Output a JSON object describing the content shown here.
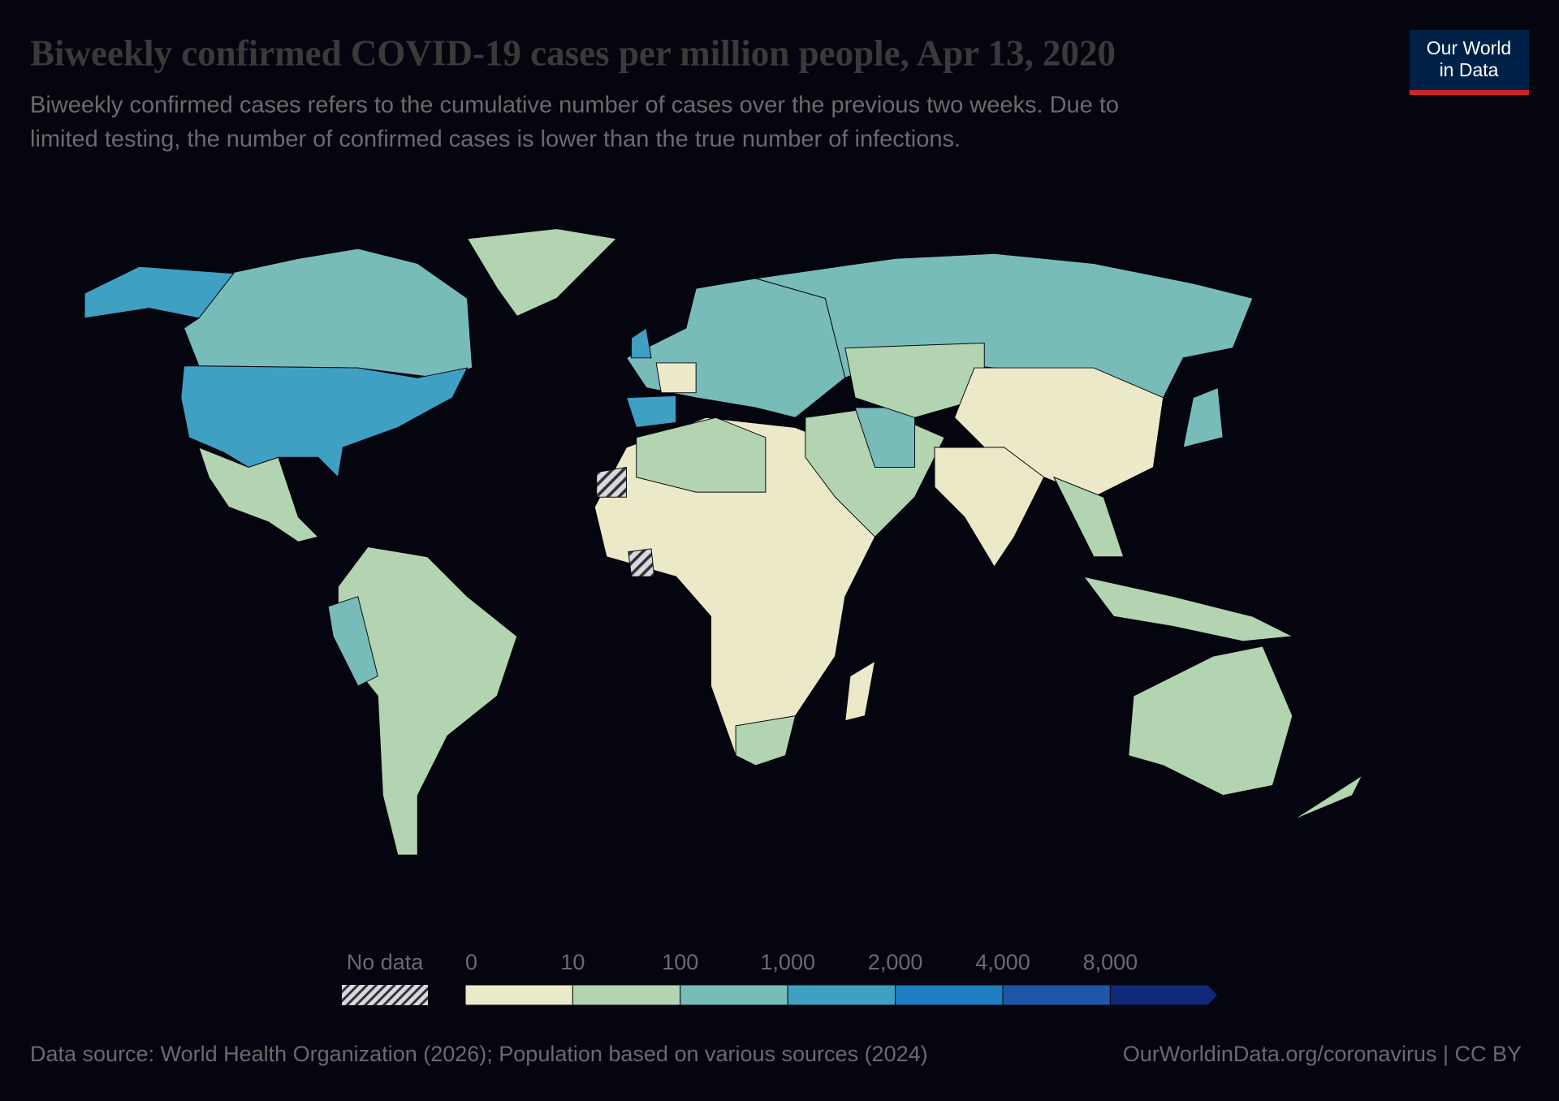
{
  "header": {
    "title": "Biweekly confirmed COVID-19 cases per million people, Apr 13, 2020",
    "subtitle_lines": [
      "Biweekly confirmed cases refers to the cumulative number of cases over the previous two weeks. Due to",
      "limited testing, the number of confirmed cases is lower than the true number of infections."
    ]
  },
  "logo": {
    "lines": [
      "Our World",
      "in Data"
    ]
  },
  "legend": {
    "no_data_label": "No data",
    "ticks": [
      0,
      10,
      100,
      {
        "value": 1000,
        "label": "1,000"
      },
      {
        "value": 2000,
        "label": "2,000"
      },
      {
        "value": 4000,
        "label": "4,000"
      },
      {
        "value": 8000,
        "label": "8,000"
      }
    ],
    "colors": [
      "#ece9c8",
      "#b3d4b0",
      "#78bcb9",
      "#3fa0c4",
      "#1d7fc0",
      "#1e56a8",
      "#0f2878"
    ]
  },
  "footer": {
    "source": "Data source: World Health Organization (2026); Population based on various sources (2024)",
    "link": "OurWorldinData.org/coronavirus | CC BY"
  }
}
